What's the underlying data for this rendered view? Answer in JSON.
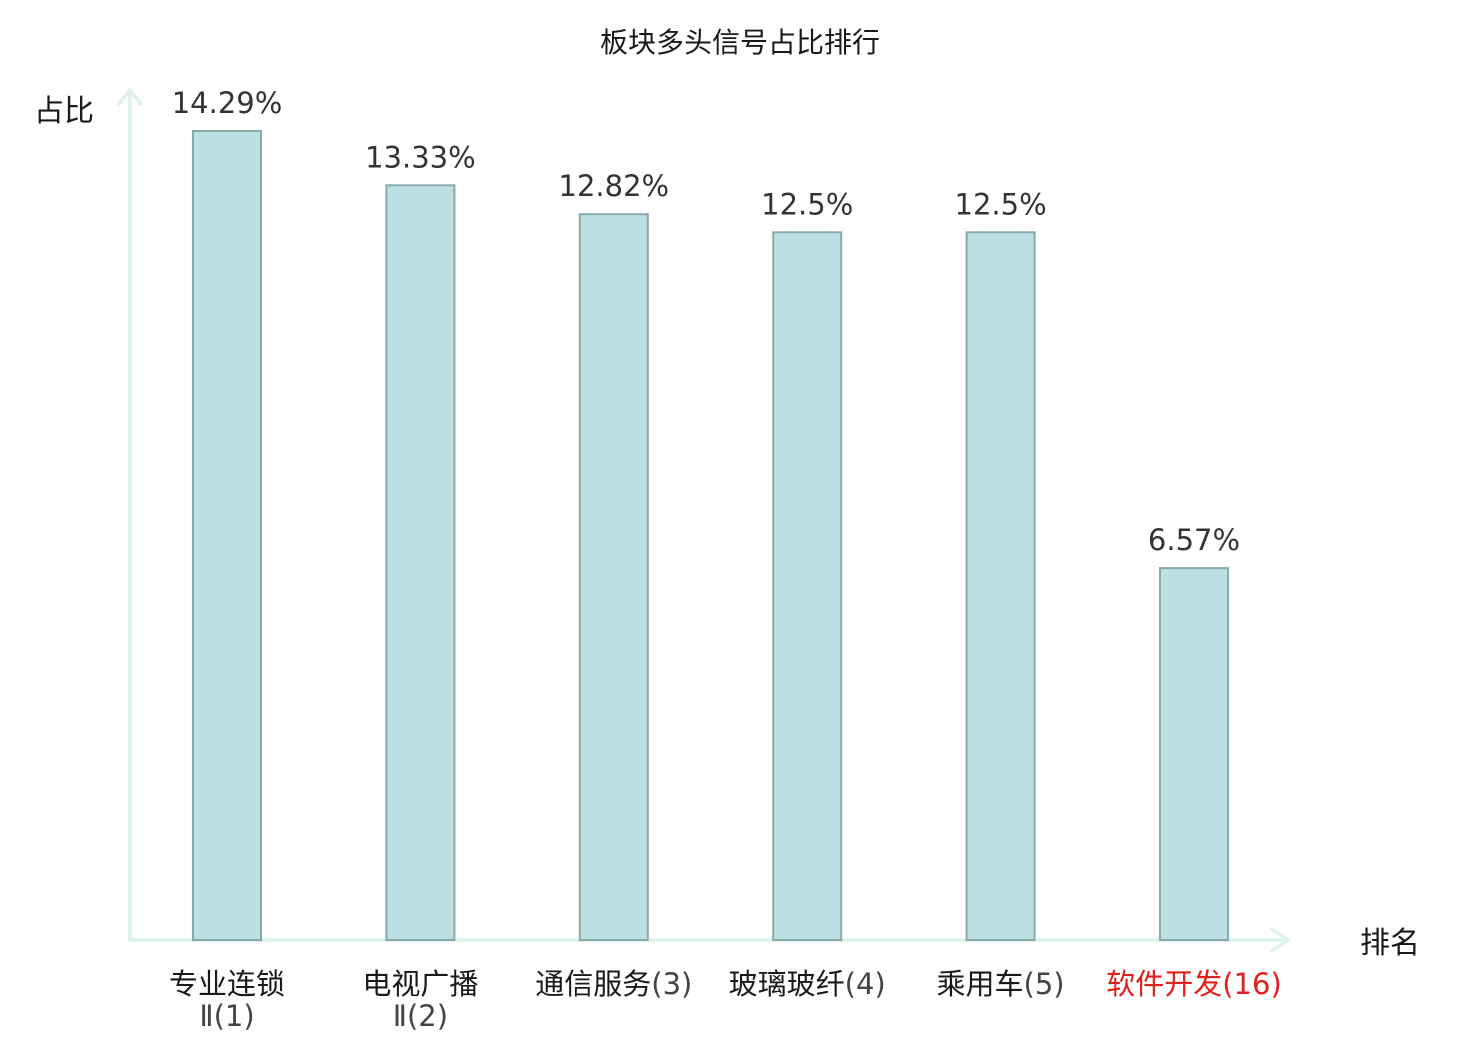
{
  "chart_data": {
    "type": "bar",
    "title": "板块多头信号占比排行",
    "ylabel": "占比",
    "xlabel": "排名",
    "ylim": [
      0,
      15
    ],
    "grid": false,
    "legend": "none",
    "unit": "%",
    "categories": [
      {
        "name": "专业连锁",
        "rank": "Ⅱ(1)",
        "highlight": false
      },
      {
        "name": "电视广播",
        "rank": "Ⅱ(2)",
        "highlight": false
      },
      {
        "name": "通信服务",
        "rank": "(3)",
        "highlight": false
      },
      {
        "name": "玻璃玻纤",
        "rank": "(4)",
        "highlight": false
      },
      {
        "name": "乘用车",
        "rank": "(5)",
        "highlight": false
      },
      {
        "name": "软件开发",
        "rank": "(16)",
        "highlight": true
      }
    ],
    "values": [
      14.29,
      13.33,
      12.82,
      12.5,
      12.5,
      6.57
    ],
    "value_labels": [
      "14.29%",
      "13.33%",
      "12.82%",
      "12.5%",
      "12.5%",
      "6.57%"
    ],
    "colors": {
      "bar_fill": "#bce0e3",
      "bar_stroke": "#8aa9ab",
      "axis": "#e0f2ef",
      "text": "#1a1a1a",
      "label_gray": "#444444",
      "highlight": "#e0201b"
    }
  }
}
